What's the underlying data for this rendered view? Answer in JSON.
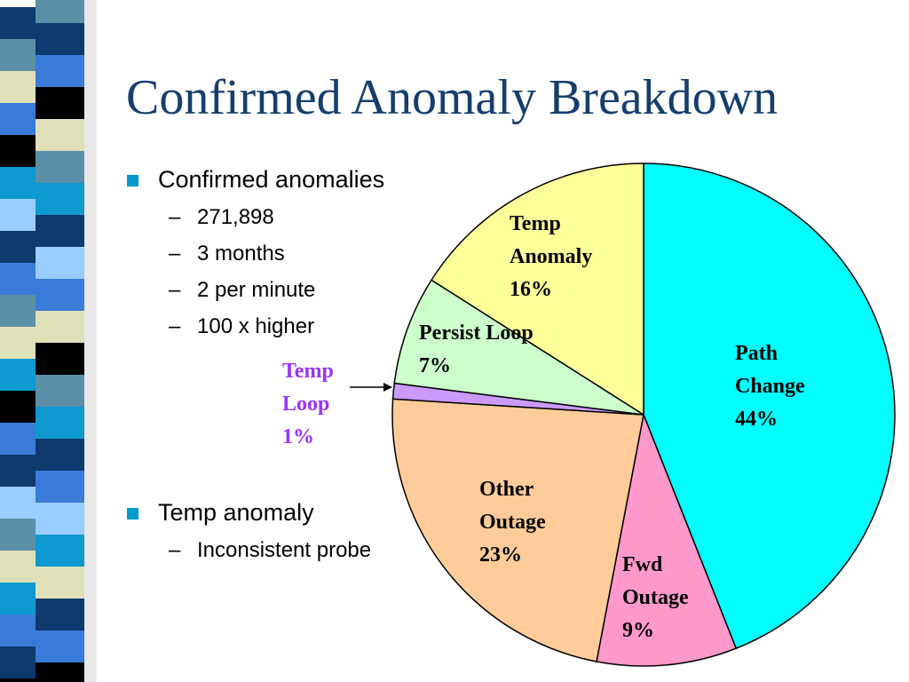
{
  "title": "Confirmed Anomaly Breakdown",
  "bullets": [
    {
      "text": "Confirmed anomalies",
      "sub": [
        "271,898",
        "3 months",
        "2 per minute",
        "100 x higher"
      ]
    },
    {
      "text": "Temp anomaly",
      "sub": [
        "Inconsistent probe"
      ]
    }
  ],
  "chart_data": {
    "type": "pie",
    "categories": [
      "Path Change",
      "Fwd Outage",
      "Other Outage",
      "Temp Loop",
      "Persist Loop",
      "Temp Anomaly"
    ],
    "values": [
      44,
      9,
      23,
      1,
      7,
      16
    ],
    "value_labels": [
      "44%",
      "9%",
      "23%",
      "1%",
      "7%",
      "16%"
    ],
    "colors": [
      "#00ffff",
      "#ff99cc",
      "#ffcc99",
      "#cc99ff",
      "#ccffcc",
      "#ffff99"
    ]
  }
}
